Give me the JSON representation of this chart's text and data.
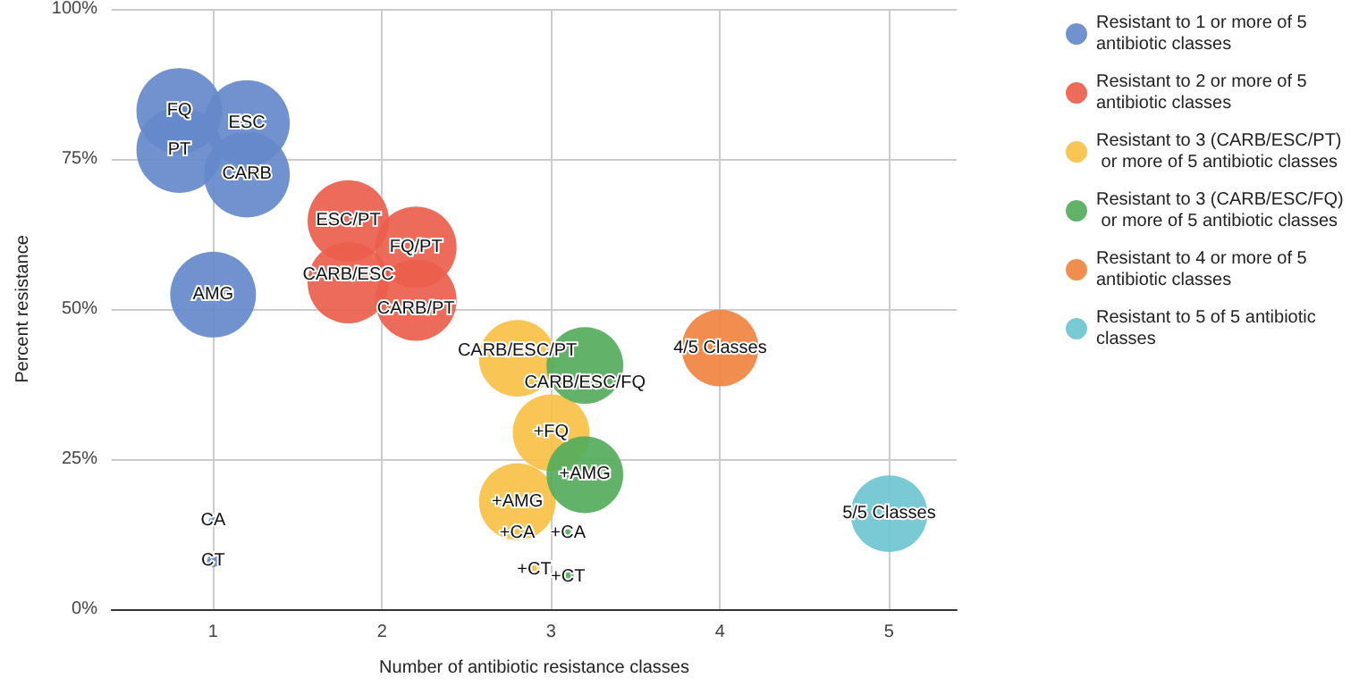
{
  "chart_data": {
    "type": "bubble",
    "xlabel": "Number of antibiotic resistance classes",
    "ylabel": "Percent resistance",
    "xlim": [
      0.4,
      5.4
    ],
    "xticks": [
      1,
      2,
      3,
      4,
      5
    ],
    "ylim": [
      0,
      100
    ],
    "yticks": [
      {
        "value": 0,
        "label": "0%"
      },
      {
        "value": 25,
        "label": "25%"
      },
      {
        "value": 50,
        "label": "50%"
      },
      {
        "value": 75,
        "label": "75%"
      },
      {
        "value": 100,
        "label": "100%"
      }
    ],
    "grid": true,
    "legend": "right",
    "marker": "circle",
    "series": [
      {
        "name": "Resistant to 1 or more of 5 antibiotic classes",
        "color": "#6589cb",
        "x": [
          0.8,
          1.2,
          0.8,
          1.2,
          1,
          1,
          1
        ],
        "values": [
          83,
          81,
          76.5,
          72.4,
          52.4,
          14.7,
          8
        ],
        "sizes": [
          1,
          1,
          1,
          1,
          1,
          0.01,
          0.02
        ]
      },
      {
        "name": "Resistant to 2 or more of 5 antibiotic classes",
        "color": "#ec5e4c",
        "x": [
          1.8,
          2.2,
          1.8,
          2.2
        ],
        "values": [
          64.7,
          60.3,
          54.4,
          51.5
        ],
        "sizes": [
          0.9,
          0.9,
          0.9,
          0.9
        ]
      },
      {
        "name": "Resistant to 3 (CARB/ESC/PT) or more of 5 antibiotic classes",
        "color": "#f9c146",
        "x": [
          2.8,
          3,
          2.8,
          2.8,
          2.9
        ],
        "values": [
          41.8,
          29.4,
          17.9,
          12.6,
          6.5
        ],
        "sizes": [
          0.8,
          0.8,
          0.8,
          0.01,
          0.02
        ]
      },
      {
        "name": "Resistant to 3 (CARB/ESC/FQ) or more of 5 antibiotic classes",
        "color": "#55ad5c",
        "x": [
          3.2,
          3.2,
          3.1,
          3.1
        ],
        "values": [
          40.6,
          22.4,
          12.6,
          5.3
        ],
        "sizes": [
          0.8,
          0.8,
          0.01,
          0.02
        ]
      },
      {
        "name": "Resistant to 4 or more of 5 antibiotic classes",
        "color": "#f0833f",
        "x": [
          4
        ],
        "values": [
          43.5
        ],
        "sizes": [
          0.8
        ]
      },
      {
        "name": "Resistant to 5 of 5 antibiotic classes",
        "color": "#6ec6d1",
        "x": [
          5
        ],
        "values": [
          15.9
        ],
        "sizes": [
          0.8
        ]
      }
    ],
    "annotations": [
      {
        "text": "FQ",
        "x": 0.8,
        "y": 83
      },
      {
        "text": "ESC",
        "x": 1.2,
        "y": 81
      },
      {
        "text": "PT",
        "x": 0.8,
        "y": 76.5
      },
      {
        "text": "CARB",
        "x": 1.2,
        "y": 72.4
      },
      {
        "text": "AMG",
        "x": 1,
        "y": 52.4
      },
      {
        "text": "CA",
        "x": 1,
        "y": 14.7
      },
      {
        "text": "CT",
        "x": 1,
        "y": 8
      },
      {
        "text": "ESC/PT",
        "x": 1.8,
        "y": 64.7
      },
      {
        "text": "FQ/PT",
        "x": 2.2,
        "y": 60.3
      },
      {
        "text": "CARB/ESC",
        "x": 1.8,
        "y": 54.4
      },
      {
        "text": "CARB/PT",
        "x": 2.2,
        "y": 51.5
      },
      {
        "text": "CARB/ESC/PT",
        "x": 2.8,
        "y": 41.8
      },
      {
        "text": "+FQ",
        "x": 3,
        "y": 29.4
      },
      {
        "text": "+AMG",
        "x": 2.8,
        "y": 17.9
      },
      {
        "text": "+CA",
        "x": 2.8,
        "y": 12.6
      },
      {
        "text": "+CT",
        "x": 2.9,
        "y": 6.5
      },
      {
        "text": "CARB/ESC/FQ",
        "x": 3.2,
        "y": 40.6
      },
      {
        "text": "+AMG",
        "x": 3.2,
        "y": 22.4
      },
      {
        "text": "+CA",
        "x": 3.1,
        "y": 12.6
      },
      {
        "text": "+CT",
        "x": 3.1,
        "y": 5.3
      },
      {
        "text": "4/5 Classes",
        "x": 4,
        "y": 43.5
      },
      {
        "text": "5/5 Classes",
        "x": 5,
        "y": 15.9
      }
    ]
  }
}
